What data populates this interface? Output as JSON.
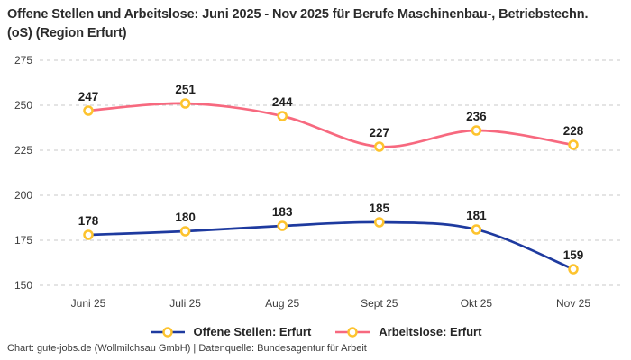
{
  "title": "Offene Stellen und Arbeitslose: Juni 2025 - Nov 2025 für Berufe Maschinenbau-, Betriebstechn.(oS) (Region Erfurt)",
  "footer": "Chart: gute-jobs.de (Wollmilchsau GmbH) | Datenquelle: Bundesagentur für Arbeit",
  "colors": {
    "series_offene_stellen": "#1e3a9f",
    "series_arbeitslose": "#f7697f",
    "marker_stroke": "#fdc32e",
    "marker_fill": "#ffffff",
    "grid": "#c9c9c9",
    "axis_text": "#3d3d3d",
    "data_label": "#1f1f1f",
    "background": "#ffffff"
  },
  "chart_data": {
    "type": "line",
    "categories": [
      "Juni 25",
      "Juli 25",
      "Aug 25",
      "Sept 25",
      "Okt 25",
      "Nov 25"
    ],
    "series": [
      {
        "name": "Offene Stellen: Erfurt",
        "values": [
          178,
          180,
          183,
          185,
          181,
          159
        ],
        "color_key": "series_offene_stellen"
      },
      {
        "name": "Arbeitslose: Erfurt",
        "values": [
          247,
          251,
          244,
          227,
          236,
          228
        ],
        "color_key": "series_arbeitslose"
      }
    ],
    "ylim": [
      150,
      275
    ],
    "yticks": [
      150,
      175,
      200,
      225,
      250,
      275
    ],
    "grid": true,
    "grid_style": "dashed",
    "legend_position": "bottom",
    "marker_shape": "circle",
    "smooth": true
  }
}
